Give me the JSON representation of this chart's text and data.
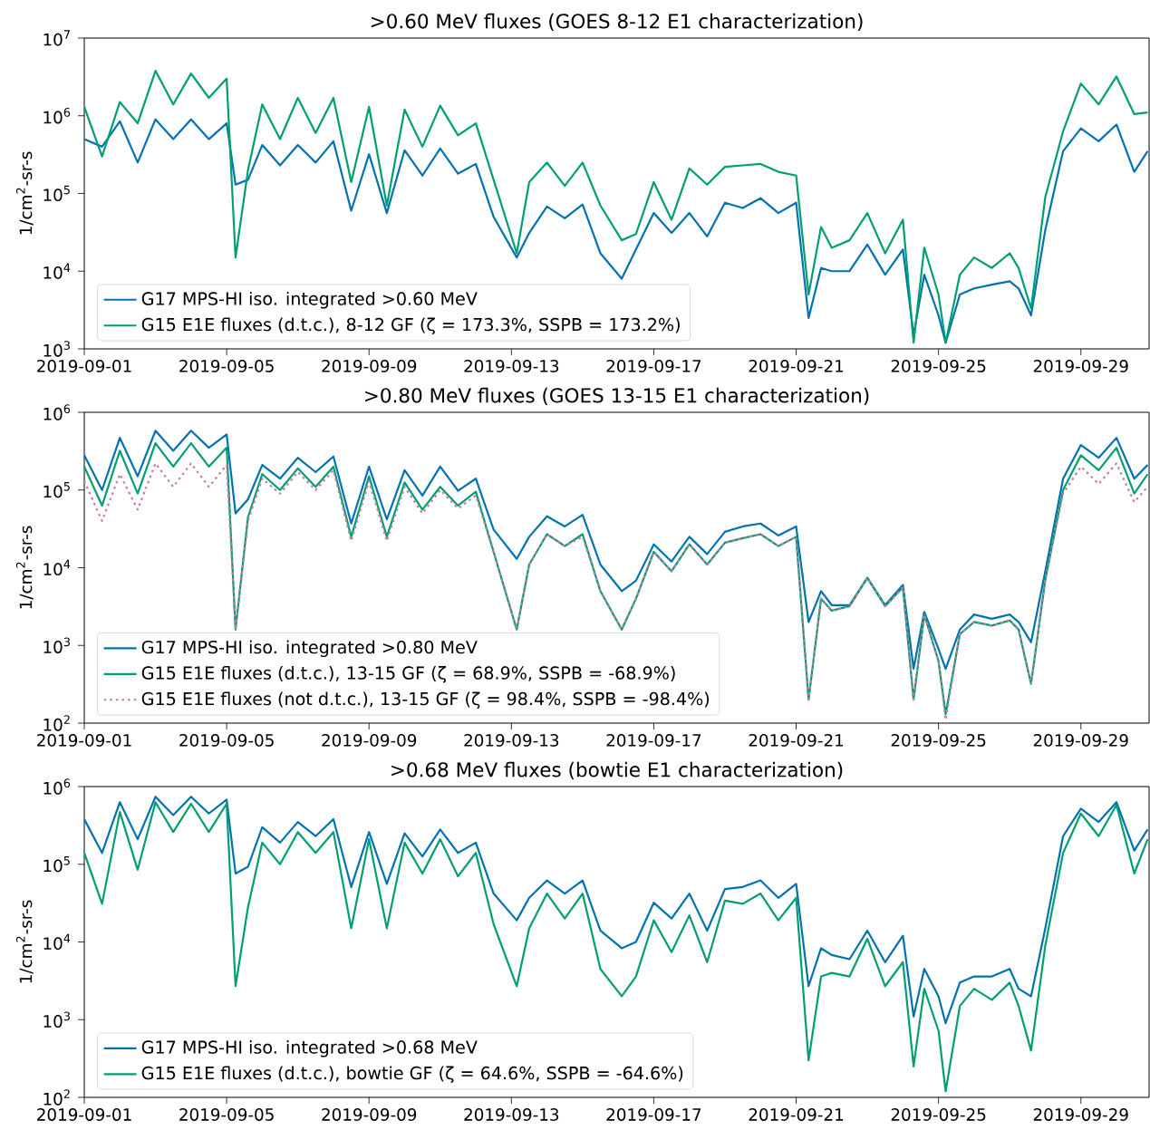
{
  "chart_data": [
    {
      "type": "line",
      "title": ">0.60 MeV fluxes (GOES 8-12 E1 characterization)",
      "ylabel": "1/cm$^{2}$-sr-s",
      "log": "y",
      "legend": "bottom left",
      "xlim": [
        "2019-09-01",
        "2019-09-30T22:00"
      ],
      "ylim": [
        1000,
        10000000
      ],
      "xticks": [
        "2019-09-01",
        "2019-09-05",
        "2019-09-09",
        "2019-09-13",
        "2019-09-17",
        "2019-09-21",
        "2019-09-25",
        "2019-09-29"
      ],
      "yticks": [
        {
          "value": 1000,
          "label": "10$^{3}$"
        },
        {
          "value": 10000,
          "label": "10$^{4}$"
        },
        {
          "value": 100000,
          "label": "10$^{5}$"
        },
        {
          "value": 1000000,
          "label": "10$^{6}$"
        },
        {
          "value": 10000000,
          "label": "10$^{7}$"
        }
      ],
      "x": [
        "2019-09-01T00:00",
        "2019-09-01T12:00",
        "2019-09-02T00:00",
        "2019-09-02T12:00",
        "2019-09-03T00:00",
        "2019-09-03T12:00",
        "2019-09-04T00:00",
        "2019-09-04T12:00",
        "2019-09-05T00:00",
        "2019-09-05T06:00",
        "2019-09-05T14:24",
        "2019-09-06T00:00",
        "2019-09-06T12:00",
        "2019-09-07T00:00",
        "2019-09-07T12:00",
        "2019-09-08T00:00",
        "2019-09-08T12:00",
        "2019-09-09T00:00",
        "2019-09-09T12:00",
        "2019-09-10T00:00",
        "2019-09-10T12:00",
        "2019-09-11T00:00",
        "2019-09-11T12:00",
        "2019-09-12T00:00",
        "2019-09-12T12:00",
        "2019-09-13T03:36",
        "2019-09-13T12:00",
        "2019-09-14T00:00",
        "2019-09-14T12:00",
        "2019-09-15T00:00",
        "2019-09-15T12:00",
        "2019-09-16T02:24",
        "2019-09-16T12:00",
        "2019-09-17T00:00",
        "2019-09-17T12:00",
        "2019-09-18T00:00",
        "2019-09-18T12:00",
        "2019-09-19T00:00",
        "2019-09-19T12:00",
        "2019-09-20T00:00",
        "2019-09-20T12:00",
        "2019-09-21T00:00",
        "2019-09-21T08:24",
        "2019-09-21T16:48",
        "2019-09-22T00:00",
        "2019-09-22T12:00",
        "2019-09-23T00:00",
        "2019-09-23T12:00",
        "2019-09-24T00:00",
        "2019-09-24T07:12",
        "2019-09-24T14:24",
        "2019-09-25T00:00",
        "2019-09-25T04:48",
        "2019-09-25T14:24",
        "2019-09-26T00:00",
        "2019-09-26T12:00",
        "2019-09-27T00:00",
        "2019-09-27T06:00",
        "2019-09-27T14:24",
        "2019-09-28T00:00",
        "2019-09-28T12:00",
        "2019-09-29T00:00",
        "2019-09-29T12:00",
        "2019-09-30T00:00",
        "2019-09-30T12:00",
        "2019-09-30T21:00"
      ],
      "series": [
        {
          "name": "G17 MPS-HI iso. integrated >0.60 MeV",
          "color": "#0072b2",
          "values": [
            500000,
            400000,
            850000,
            250000,
            900000,
            500000,
            900000,
            500000,
            800000,
            130000,
            150000,
            420000,
            230000,
            420000,
            250000,
            470000,
            60000,
            320000,
            56000,
            360000,
            170000,
            380000,
            180000,
            240000,
            50000,
            15000,
            31000,
            68000,
            48000,
            72000,
            17000,
            8000,
            19000,
            56000,
            31000,
            56000,
            28000,
            76000,
            65000,
            87000,
            56000,
            76000,
            2500,
            11000,
            10000,
            10000,
            22000,
            9000,
            19000,
            1500,
            9000,
            2700,
            1200,
            5000,
            6000,
            6700,
            7400,
            6000,
            2700,
            34000,
            350000,
            690000,
            470000,
            770000,
            190000,
            350000
          ]
        },
        {
          "name": "G15 E1E fluxes (d.t.c.), 8-12 GF (ζ =  173.3%, SSPB =  173.2%)",
          "color": "#009e73",
          "values": [
            1300000,
            300000,
            1500000,
            800000,
            3800000,
            1400000,
            3500000,
            1700000,
            3000000,
            15000,
            200000,
            1400000,
            500000,
            1700000,
            600000,
            1700000,
            140000,
            1300000,
            70000,
            1200000,
            400000,
            1350000,
            560000,
            800000,
            150000,
            17000,
            140000,
            250000,
            125000,
            250000,
            70000,
            25000,
            30000,
            140000,
            46000,
            210000,
            130000,
            220000,
            230000,
            240000,
            190000,
            170000,
            5000,
            37000,
            20000,
            25000,
            56000,
            17000,
            46000,
            1200,
            20000,
            5000,
            1200,
            9000,
            15000,
            11000,
            17000,
            11000,
            3300,
            90000,
            630000,
            2600000,
            1400000,
            3200000,
            1050000,
            1100000
          ]
        }
      ]
    },
    {
      "type": "line",
      "title": ">0.80 MeV fluxes (GOES 13-15 E1 characterization)",
      "ylabel": "1/cm$^{2}$-sr-s",
      "log": "y",
      "legend": "bottom left",
      "xlim": [
        "2019-09-01",
        "2019-09-30T22:00"
      ],
      "ylim": [
        100,
        1000000
      ],
      "xticks": [
        "2019-09-01",
        "2019-09-05",
        "2019-09-09",
        "2019-09-13",
        "2019-09-17",
        "2019-09-21",
        "2019-09-25",
        "2019-09-29"
      ],
      "yticks": [
        {
          "value": 100,
          "label": "10$^{2}$"
        },
        {
          "value": 1000,
          "label": "10$^{3}$"
        },
        {
          "value": 10000,
          "label": "10$^{4}$"
        },
        {
          "value": 100000,
          "label": "10$^{5}$"
        },
        {
          "value": 1000000,
          "label": "10$^{6}$"
        }
      ],
      "x": [
        "2019-09-01T00:00",
        "2019-09-01T12:00",
        "2019-09-02T00:00",
        "2019-09-02T12:00",
        "2019-09-03T00:00",
        "2019-09-03T12:00",
        "2019-09-04T00:00",
        "2019-09-04T12:00",
        "2019-09-05T00:00",
        "2019-09-05T06:00",
        "2019-09-05T14:24",
        "2019-09-06T00:00",
        "2019-09-06T12:00",
        "2019-09-07T00:00",
        "2019-09-07T12:00",
        "2019-09-08T00:00",
        "2019-09-08T12:00",
        "2019-09-09T00:00",
        "2019-09-09T12:00",
        "2019-09-10T00:00",
        "2019-09-10T12:00",
        "2019-09-11T00:00",
        "2019-09-11T12:00",
        "2019-09-12T00:00",
        "2019-09-12T12:00",
        "2019-09-13T03:36",
        "2019-09-13T12:00",
        "2019-09-14T00:00",
        "2019-09-14T12:00",
        "2019-09-15T00:00",
        "2019-09-15T12:00",
        "2019-09-16T02:24",
        "2019-09-16T12:00",
        "2019-09-17T00:00",
        "2019-09-17T12:00",
        "2019-09-18T00:00",
        "2019-09-18T12:00",
        "2019-09-19T00:00",
        "2019-09-19T12:00",
        "2019-09-20T00:00",
        "2019-09-20T12:00",
        "2019-09-21T00:00",
        "2019-09-21T08:24",
        "2019-09-21T16:48",
        "2019-09-22T00:00",
        "2019-09-22T12:00",
        "2019-09-23T00:00",
        "2019-09-23T12:00",
        "2019-09-24T00:00",
        "2019-09-24T07:12",
        "2019-09-24T14:24",
        "2019-09-25T00:00",
        "2019-09-25T04:48",
        "2019-09-25T14:24",
        "2019-09-26T00:00",
        "2019-09-26T12:00",
        "2019-09-27T00:00",
        "2019-09-27T06:00",
        "2019-09-27T14:24",
        "2019-09-28T00:00",
        "2019-09-28T12:00",
        "2019-09-29T00:00",
        "2019-09-29T12:00",
        "2019-09-30T00:00",
        "2019-09-30T12:00",
        "2019-09-30T21:00"
      ],
      "series": [
        {
          "name": "G17 MPS-HI iso. integrated >0.80 MeV",
          "color": "#0072b2",
          "values": [
            280000,
            100000,
            470000,
            150000,
            580000,
            320000,
            580000,
            350000,
            520000,
            50000,
            76000,
            210000,
            140000,
            260000,
            170000,
            270000,
            37000,
            200000,
            42000,
            180000,
            85000,
            200000,
            98000,
            140000,
            31000,
            13000,
            25000,
            46000,
            34000,
            48000,
            11000,
            5000,
            6800,
            20000,
            12000,
            25000,
            15000,
            29000,
            34000,
            37000,
            26000,
            34000,
            2000,
            5000,
            3300,
            3300,
            7400,
            3300,
            6000,
            500,
            2700,
            900,
            500,
            1600,
            2500,
            2200,
            2500,
            2000,
            1100,
            9000,
            140000,
            380000,
            260000,
            470000,
            140000,
            210000
          ]
        },
        {
          "name": "G15 E1E fluxes (d.t.c.), 13-15 GF (ζ =   68.9%, SSPB =  -68.9%)",
          "color": "#009e73",
          "values": [
            200000,
            63000,
            320000,
            90000,
            400000,
            200000,
            400000,
            200000,
            350000,
            1600,
            45000,
            160000,
            100000,
            190000,
            110000,
            200000,
            25000,
            150000,
            25000,
            125000,
            56000,
            110000,
            63000,
            95000,
            16000,
            1600,
            11000,
            27000,
            19000,
            27000,
            5000,
            1600,
            4000,
            16000,
            9000,
            20000,
            11000,
            21000,
            24000,
            27000,
            19000,
            25000,
            200,
            4000,
            2800,
            3200,
            7400,
            3200,
            5600,
            200,
            2500,
            630,
            130,
            1400,
            2000,
            1800,
            2100,
            1600,
            320,
            7000,
            100000,
            280000,
            180000,
            350000,
            90000,
            160000
          ]
        },
        {
          "name": "G15 E1E fluxes (not d.t.c.), 13-15 GF (ζ =   98.4%, SSPB =  -98.4%)",
          "color": "#cc79a7",
          "line_style": "dotted",
          "values": [
            130000,
            40000,
            160000,
            56000,
            220000,
            110000,
            220000,
            110000,
            210000,
            1600,
            40000,
            140000,
            90000,
            170000,
            100000,
            180000,
            22000,
            130000,
            22000,
            110000,
            50000,
            100000,
            58000,
            85000,
            16000,
            1600,
            11000,
            27000,
            19000,
            25000,
            5000,
            1600,
            4000,
            16000,
            9000,
            20000,
            11000,
            21000,
            24000,
            27000,
            19000,
            25000,
            200,
            4000,
            2800,
            3200,
            7400,
            3200,
            5600,
            200,
            2500,
            630,
            110,
            1400,
            2000,
            1800,
            2100,
            1600,
            320,
            7000,
            90000,
            200000,
            120000,
            220000,
            70000,
            110000
          ]
        }
      ]
    },
    {
      "type": "line",
      "title": ">0.68 MeV fluxes (bowtie E1 characterization)",
      "ylabel": "1/cm$^{2}$-sr-s",
      "log": "y",
      "legend": "bottom left",
      "xlim": [
        "2019-09-01",
        "2019-09-30T22:00"
      ],
      "ylim": [
        100,
        1000000
      ],
      "xticks": [
        "2019-09-01",
        "2019-09-05",
        "2019-09-09",
        "2019-09-13",
        "2019-09-17",
        "2019-09-21",
        "2019-09-25",
        "2019-09-29"
      ],
      "yticks": [
        {
          "value": 100,
          "label": "10$^{2}$"
        },
        {
          "value": 1000,
          "label": "10$^{3}$"
        },
        {
          "value": 10000,
          "label": "10$^{4}$"
        },
        {
          "value": 100000,
          "label": "10$^{5}$"
        },
        {
          "value": 1000000,
          "label": "10$^{6}$"
        }
      ],
      "x": [
        "2019-09-01T00:00",
        "2019-09-01T12:00",
        "2019-09-02T00:00",
        "2019-09-02T12:00",
        "2019-09-03T00:00",
        "2019-09-03T12:00",
        "2019-09-04T00:00",
        "2019-09-04T12:00",
        "2019-09-05T00:00",
        "2019-09-05T06:00",
        "2019-09-05T14:24",
        "2019-09-06T00:00",
        "2019-09-06T12:00",
        "2019-09-07T00:00",
        "2019-09-07T12:00",
        "2019-09-08T00:00",
        "2019-09-08T12:00",
        "2019-09-09T00:00",
        "2019-09-09T12:00",
        "2019-09-10T00:00",
        "2019-09-10T12:00",
        "2019-09-11T00:00",
        "2019-09-11T12:00",
        "2019-09-12T00:00",
        "2019-09-12T12:00",
        "2019-09-13T03:36",
        "2019-09-13T12:00",
        "2019-09-14T00:00",
        "2019-09-14T12:00",
        "2019-09-15T00:00",
        "2019-09-15T12:00",
        "2019-09-16T02:24",
        "2019-09-16T12:00",
        "2019-09-17T00:00",
        "2019-09-17T12:00",
        "2019-09-18T00:00",
        "2019-09-18T12:00",
        "2019-09-19T00:00",
        "2019-09-19T12:00",
        "2019-09-20T00:00",
        "2019-09-20T12:00",
        "2019-09-21T00:00",
        "2019-09-21T08:24",
        "2019-09-21T16:48",
        "2019-09-22T00:00",
        "2019-09-22T12:00",
        "2019-09-23T00:00",
        "2019-09-23T12:00",
        "2019-09-24T00:00",
        "2019-09-24T07:12",
        "2019-09-24T14:24",
        "2019-09-25T00:00",
        "2019-09-25T04:48",
        "2019-09-25T14:24",
        "2019-09-26T00:00",
        "2019-09-26T12:00",
        "2019-09-27T00:00",
        "2019-09-27T06:00",
        "2019-09-27T14:24",
        "2019-09-28T00:00",
        "2019-09-28T12:00",
        "2019-09-29T00:00",
        "2019-09-29T12:00",
        "2019-09-30T00:00",
        "2019-09-30T12:00",
        "2019-09-30T21:00"
      ],
      "series": [
        {
          "name": "G17 MPS-HI iso. integrated >0.68 MeV",
          "color": "#0072b2",
          "values": [
            380000,
            140000,
            630000,
            210000,
            740000,
            430000,
            740000,
            450000,
            680000,
            76000,
            93000,
            300000,
            190000,
            350000,
            230000,
            380000,
            51000,
            260000,
            56000,
            250000,
            126000,
            280000,
            140000,
            190000,
            42000,
            19000,
            37000,
            62000,
            42000,
            62000,
            14000,
            8300,
            10000,
            32000,
            20000,
            42000,
            14000,
            48000,
            51000,
            62000,
            37000,
            56000,
            2700,
            8300,
            6800,
            6000,
            14000,
            5500,
            12000,
            1100,
            4500,
            2000,
            900,
            3000,
            3600,
            3600,
            4500,
            2500,
            2000,
            15000,
            230000,
            520000,
            350000,
            630000,
            150000,
            280000
          ]
        },
        {
          "name": "G15 E1E fluxes (d.t.c.), bowtie GF (ζ =   64.6%, SSPB =  -64.6%)",
          "color": "#009e73",
          "values": [
            140000,
            31000,
            470000,
            85000,
            630000,
            260000,
            600000,
            260000,
            600000,
            2700,
            28000,
            190000,
            100000,
            260000,
            140000,
            260000,
            15000,
            210000,
            15000,
            190000,
            76000,
            210000,
            70000,
            140000,
            17000,
            2700,
            15000,
            42000,
            20000,
            42000,
            4500,
            2000,
            3600,
            19000,
            7400,
            22000,
            5500,
            34000,
            31000,
            42000,
            19000,
            37000,
            300,
            3600,
            4000,
            3600,
            11000,
            2700,
            5500,
            250,
            2500,
            720,
            120,
            1500,
            2500,
            1800,
            3000,
            1500,
            400,
            9000,
            140000,
            450000,
            230000,
            580000,
            76000,
            210000
          ]
        }
      ]
    }
  ]
}
